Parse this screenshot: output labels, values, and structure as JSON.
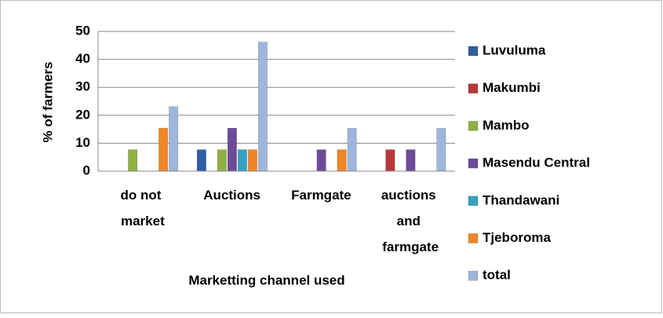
{
  "chart_data": {
    "type": "bar",
    "categories": [
      "do not market",
      "Auctions",
      "Farmgate",
      "auctions and farmgate"
    ],
    "series": [
      {
        "name": "Luvuluma",
        "color": "#2f60a6",
        "values": [
          0,
          7.7,
          0,
          0
        ]
      },
      {
        "name": "Makumbi",
        "color": "#b8373a",
        "values": [
          0,
          0,
          0,
          7.7
        ]
      },
      {
        "name": "Mambo",
        "color": "#8fb043",
        "values": [
          7.7,
          7.7,
          0,
          0
        ]
      },
      {
        "name": "Masendu Central",
        "color": "#6e4b98",
        "values": [
          0,
          15.4,
          7.7,
          7.7
        ]
      },
      {
        "name": "Thandawani",
        "color": "#35a3c0",
        "values": [
          0,
          7.7,
          0,
          0
        ]
      },
      {
        "name": "Tjeboroma",
        "color": "#ee8526",
        "values": [
          15.4,
          7.7,
          7.7,
          0
        ]
      },
      {
        "name": "total",
        "color": "#9db6dc",
        "values": [
          23.1,
          46.2,
          15.4,
          15.4
        ]
      }
    ],
    "ylabel": "% of farmers",
    "xlabel": "Marketting channel used",
    "ylim": [
      0,
      50
    ],
    "yticks": [
      0,
      10,
      20,
      30,
      40,
      50
    ],
    "grid": true,
    "legend": "right"
  }
}
